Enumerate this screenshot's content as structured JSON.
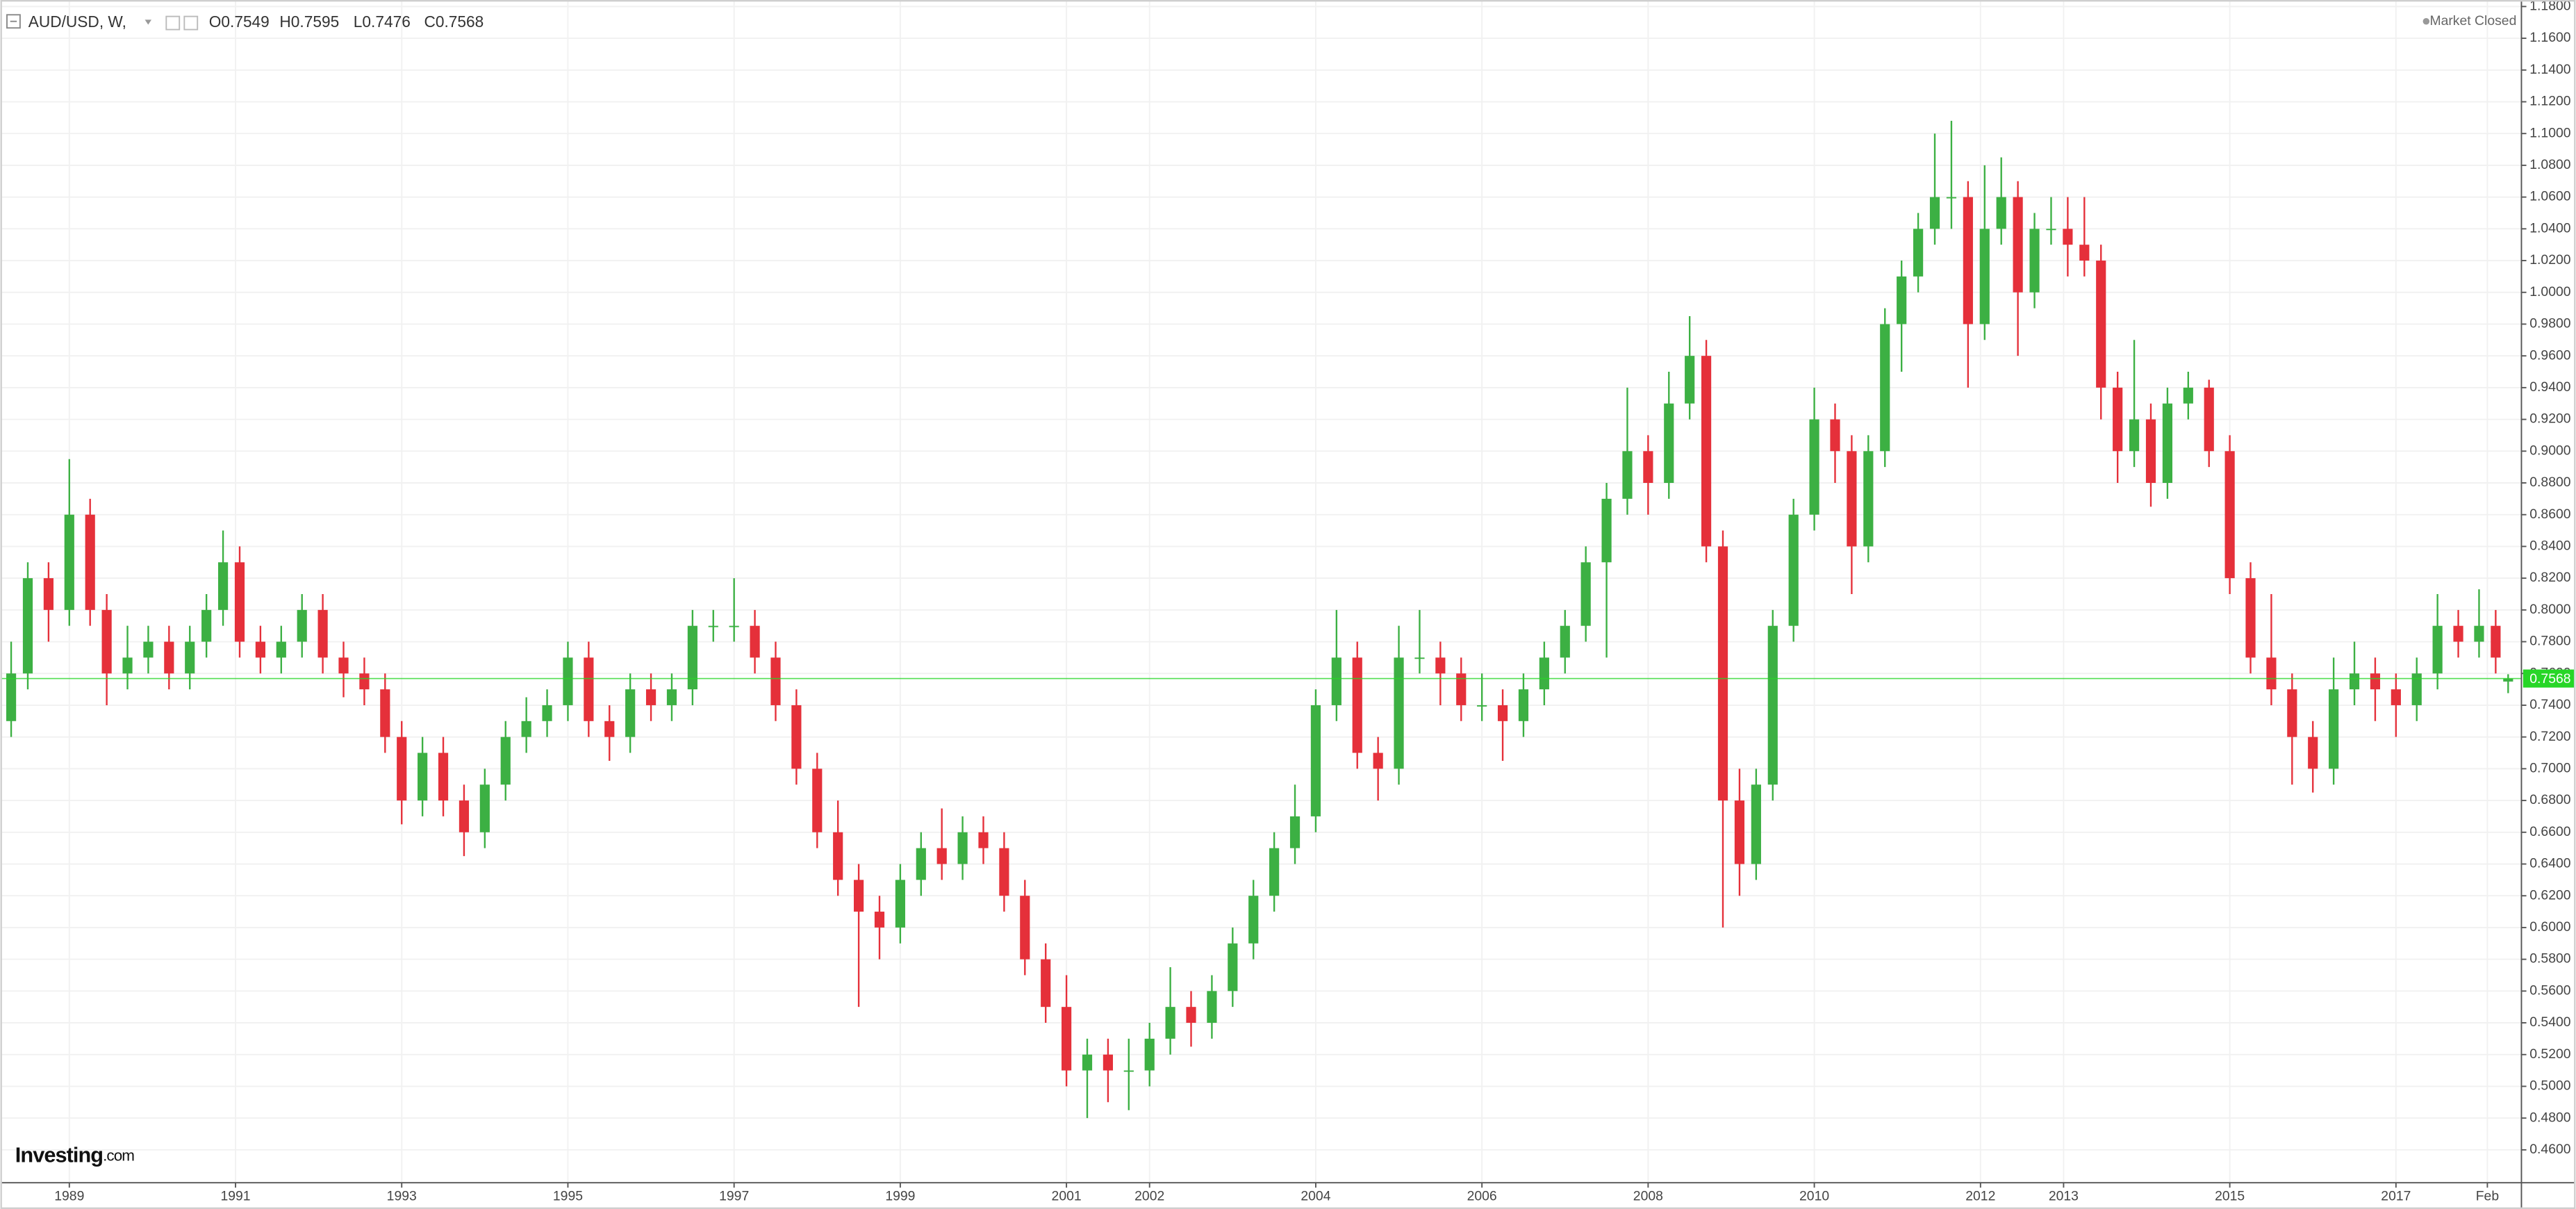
{
  "header": {
    "symbol": "AUD/USD, W,",
    "ohlc": [
      "O0.7549",
      "H0.7595",
      "L0.7476",
      "C0.7568"
    ],
    "status": "Market Closed",
    "logo_main": "Investing",
    "logo_suffix": ".com"
  },
  "chart_data": {
    "type": "candlestick",
    "x": [
      1988.3,
      1988.5,
      1988.75,
      1989.0,
      1989.25,
      1989.45,
      1989.7,
      1989.95,
      1990.2,
      1990.45,
      1990.65,
      1990.85,
      1991.05,
      1991.3,
      1991.55,
      1991.8,
      1992.05,
      1992.3,
      1992.55,
      1992.8,
      1993.0,
      1993.25,
      1993.5,
      1993.75,
      1994.0,
      1994.25,
      1994.5,
      1994.75,
      1995.0,
      1995.25,
      1995.5,
      1995.75,
      1996.0,
      1996.25,
      1996.5,
      1996.75,
      1997.0,
      1997.25,
      1997.5,
      1997.75,
      1998.0,
      1998.25,
      1998.5,
      1998.75,
      1999.0,
      1999.25,
      1999.5,
      1999.75,
      2000.0,
      2000.25,
      2000.5,
      2000.75,
      2001.0,
      2001.25,
      2001.5,
      2001.75,
      2002.0,
      2002.25,
      2002.5,
      2002.75,
      2003.0,
      2003.25,
      2003.5,
      2003.75,
      2004.0,
      2004.25,
      2004.5,
      2004.75,
      2005.0,
      2005.25,
      2005.5,
      2005.75,
      2006.0,
      2006.25,
      2006.5,
      2006.75,
      2007.0,
      2007.25,
      2007.5,
      2007.75,
      2008.0,
      2008.25,
      2008.5,
      2008.7,
      2008.9,
      2009.1,
      2009.3,
      2009.5,
      2009.75,
      2010.0,
      2010.25,
      2010.45,
      2010.65,
      2010.85,
      2011.05,
      2011.25,
      2011.45,
      2011.65,
      2011.85,
      2012.05,
      2012.25,
      2012.45,
      2012.65,
      2012.85,
      2013.05,
      2013.25,
      2013.45,
      2013.65,
      2013.85,
      2014.05,
      2014.25,
      2014.5,
      2014.75,
      2015.0,
      2015.25,
      2015.5,
      2015.75,
      2016.0,
      2016.25,
      2016.5,
      2016.75,
      2017.0,
      2017.25,
      2017.5,
      2017.75,
      2018.0,
      2018.2,
      2018.35
    ],
    "open": [
      0.73,
      0.76,
      0.82,
      0.8,
      0.86,
      0.8,
      0.76,
      0.77,
      0.78,
      0.76,
      0.78,
      0.8,
      0.83,
      0.78,
      0.77,
      0.78,
      0.8,
      0.77,
      0.76,
      0.75,
      0.72,
      0.68,
      0.71,
      0.68,
      0.66,
      0.69,
      0.72,
      0.73,
      0.74,
      0.77,
      0.73,
      0.72,
      0.75,
      0.74,
      0.75,
      0.79,
      0.79,
      0.79,
      0.77,
      0.74,
      0.7,
      0.66,
      0.63,
      0.61,
      0.6,
      0.63,
      0.65,
      0.64,
      0.66,
      0.65,
      0.62,
      0.58,
      0.55,
      0.51,
      0.52,
      0.51,
      0.51,
      0.53,
      0.55,
      0.54,
      0.56,
      0.59,
      0.62,
      0.65,
      0.67,
      0.74,
      0.77,
      0.71,
      0.7,
      0.77,
      0.77,
      0.76,
      0.74,
      0.74,
      0.73,
      0.75,
      0.77,
      0.79,
      0.83,
      0.87,
      0.9,
      0.88,
      0.93,
      0.96,
      0.84,
      0.68,
      0.64,
      0.69,
      0.79,
      0.86,
      0.92,
      0.9,
      0.84,
      0.9,
      0.98,
      1.01,
      1.04,
      1.06,
      1.06,
      0.98,
      1.04,
      1.06,
      1.0,
      1.04,
      1.04,
      1.03,
      1.02,
      0.94,
      0.9,
      0.92,
      0.88,
      0.93,
      0.94,
      0.9,
      0.82,
      0.77,
      0.75,
      0.72,
      0.7,
      0.75,
      0.76,
      0.75,
      0.74,
      0.76,
      0.79,
      0.78,
      0.79,
      0.7549
    ],
    "high": [
      0.78,
      0.83,
      0.83,
      0.895,
      0.87,
      0.81,
      0.79,
      0.79,
      0.79,
      0.79,
      0.81,
      0.85,
      0.84,
      0.79,
      0.79,
      0.81,
      0.81,
      0.78,
      0.77,
      0.76,
      0.73,
      0.72,
      0.72,
      0.69,
      0.7,
      0.73,
      0.745,
      0.75,
      0.78,
      0.78,
      0.74,
      0.76,
      0.76,
      0.76,
      0.8,
      0.8,
      0.82,
      0.8,
      0.78,
      0.75,
      0.71,
      0.68,
      0.64,
      0.62,
      0.64,
      0.66,
      0.675,
      0.67,
      0.67,
      0.66,
      0.63,
      0.59,
      0.57,
      0.53,
      0.53,
      0.53,
      0.54,
      0.575,
      0.56,
      0.57,
      0.6,
      0.63,
      0.66,
      0.69,
      0.75,
      0.8,
      0.78,
      0.72,
      0.79,
      0.8,
      0.78,
      0.77,
      0.76,
      0.75,
      0.76,
      0.78,
      0.8,
      0.84,
      0.88,
      0.94,
      0.91,
      0.95,
      0.985,
      0.97,
      0.85,
      0.7,
      0.7,
      0.8,
      0.87,
      0.94,
      0.93,
      0.91,
      0.91,
      0.99,
      1.02,
      1.05,
      1.1,
      1.108,
      1.07,
      1.08,
      1.085,
      1.07,
      1.05,
      1.06,
      1.06,
      1.06,
      1.03,
      0.95,
      0.97,
      0.93,
      0.94,
      0.95,
      0.945,
      0.91,
      0.83,
      0.81,
      0.76,
      0.73,
      0.77,
      0.78,
      0.77,
      0.76,
      0.77,
      0.81,
      0.8,
      0.813,
      0.8,
      0.7595
    ],
    "low": [
      0.72,
      0.75,
      0.78,
      0.79,
      0.79,
      0.74,
      0.75,
      0.76,
      0.75,
      0.75,
      0.77,
      0.79,
      0.77,
      0.76,
      0.76,
      0.77,
      0.76,
      0.745,
      0.74,
      0.71,
      0.665,
      0.67,
      0.67,
      0.645,
      0.65,
      0.68,
      0.71,
      0.72,
      0.73,
      0.72,
      0.705,
      0.71,
      0.73,
      0.73,
      0.74,
      0.78,
      0.78,
      0.76,
      0.73,
      0.69,
      0.65,
      0.62,
      0.55,
      0.58,
      0.59,
      0.62,
      0.63,
      0.63,
      0.64,
      0.61,
      0.57,
      0.54,
      0.5,
      0.48,
      0.49,
      0.485,
      0.5,
      0.52,
      0.525,
      0.53,
      0.55,
      0.58,
      0.61,
      0.64,
      0.66,
      0.73,
      0.7,
      0.68,
      0.69,
      0.76,
      0.74,
      0.73,
      0.73,
      0.705,
      0.72,
      0.74,
      0.76,
      0.78,
      0.77,
      0.86,
      0.86,
      0.87,
      0.92,
      0.83,
      0.6,
      0.62,
      0.63,
      0.68,
      0.78,
      0.85,
      0.88,
      0.81,
      0.83,
      0.89,
      0.95,
      1.0,
      1.03,
      1.04,
      0.94,
      0.97,
      1.03,
      0.96,
      0.99,
      1.03,
      1.01,
      1.01,
      0.92,
      0.88,
      0.89,
      0.865,
      0.87,
      0.92,
      0.89,
      0.81,
      0.76,
      0.74,
      0.69,
      0.685,
      0.69,
      0.74,
      0.73,
      0.72,
      0.73,
      0.75,
      0.77,
      0.77,
      0.76,
      0.7476
    ],
    "close": [
      0.76,
      0.82,
      0.8,
      0.86,
      0.8,
      0.76,
      0.77,
      0.78,
      0.76,
      0.78,
      0.8,
      0.83,
      0.78,
      0.77,
      0.78,
      0.8,
      0.77,
      0.76,
      0.75,
      0.72,
      0.68,
      0.71,
      0.68,
      0.66,
      0.69,
      0.72,
      0.73,
      0.74,
      0.77,
      0.73,
      0.72,
      0.75,
      0.74,
      0.75,
      0.79,
      0.79,
      0.79,
      0.77,
      0.74,
      0.7,
      0.66,
      0.63,
      0.61,
      0.6,
      0.63,
      0.65,
      0.64,
      0.66,
      0.65,
      0.62,
      0.58,
      0.55,
      0.51,
      0.52,
      0.51,
      0.51,
      0.53,
      0.55,
      0.54,
      0.56,
      0.59,
      0.62,
      0.65,
      0.67,
      0.74,
      0.77,
      0.71,
      0.7,
      0.77,
      0.77,
      0.76,
      0.74,
      0.74,
      0.73,
      0.75,
      0.77,
      0.79,
      0.83,
      0.87,
      0.9,
      0.88,
      0.93,
      0.96,
      0.84,
      0.68,
      0.64,
      0.69,
      0.79,
      0.86,
      0.92,
      0.9,
      0.84,
      0.9,
      0.98,
      1.01,
      1.04,
      1.06,
      1.06,
      0.98,
      1.04,
      1.06,
      1.0,
      1.04,
      1.04,
      1.03,
      1.02,
      0.94,
      0.9,
      0.92,
      0.88,
      0.93,
      0.94,
      0.9,
      0.82,
      0.77,
      0.75,
      0.72,
      0.7,
      0.75,
      0.76,
      0.75,
      0.74,
      0.76,
      0.79,
      0.78,
      0.79,
      0.77,
      0.7568
    ],
    "up_color": "#3cb043",
    "down_color": "#e5303a",
    "last_price": 0.7568,
    "last_price_color": "#27d627",
    "xlim": [
      1988.17,
      2018.51
    ],
    "ylim": [
      0.4393,
      1.1841
    ],
    "grid": true,
    "xticks": [
      1989,
      1991,
      1993,
      1995,
      1997,
      1999,
      2001,
      2002,
      2004,
      2006,
      2008,
      2010,
      2012,
      2013,
      2015,
      2017,
      {
        "value": 2018.1,
        "label": "Feb"
      }
    ],
    "yticks": [
      {
        "value": 0.46,
        "label": "0.4600"
      },
      {
        "value": 0.48,
        "label": "0.4800"
      },
      {
        "value": 0.5,
        "label": "0.5000"
      },
      {
        "value": 0.52,
        "label": "0.5200"
      },
      {
        "value": 0.54,
        "label": "0.5400"
      },
      {
        "value": 0.56,
        "label": "0.5600"
      },
      {
        "value": 0.58,
        "label": "0.5800"
      },
      {
        "value": 0.6,
        "label": "0.6000"
      },
      {
        "value": 0.62,
        "label": "0.6200"
      },
      {
        "value": 0.64,
        "label": "0.6400"
      },
      {
        "value": 0.66,
        "label": "0.6600"
      },
      {
        "value": 0.68,
        "label": "0.6800"
      },
      {
        "value": 0.7,
        "label": "0.7000"
      },
      {
        "value": 0.72,
        "label": "0.7200"
      },
      {
        "value": 0.74,
        "label": "0.7400"
      },
      {
        "value": 0.76,
        "label": "0.7600"
      },
      {
        "value": 0.78,
        "label": "0.7800"
      },
      {
        "value": 0.8,
        "label": "0.8000"
      },
      {
        "value": 0.82,
        "label": "0.8200"
      },
      {
        "value": 0.84,
        "label": "0.8400"
      },
      {
        "value": 0.86,
        "label": "0.8600"
      },
      {
        "value": 0.88,
        "label": "0.8800"
      },
      {
        "value": 0.9,
        "label": "0.9000"
      },
      {
        "value": 0.92,
        "label": "0.9200"
      },
      {
        "value": 0.94,
        "label": "0.9400"
      },
      {
        "value": 0.96,
        "label": "0.9600"
      },
      {
        "value": 0.98,
        "label": "0.9800"
      },
      {
        "value": 1.0,
        "label": "1.0000"
      },
      {
        "value": 1.02,
        "label": "1.0200"
      },
      {
        "value": 1.04,
        "label": "1.0400"
      },
      {
        "value": 1.06,
        "label": "1.0600"
      },
      {
        "value": 1.08,
        "label": "1.0800"
      },
      {
        "value": 1.1,
        "label": "1.1000"
      },
      {
        "value": 1.12,
        "label": "1.1200"
      },
      {
        "value": 1.14,
        "label": "1.1400"
      },
      {
        "value": 1.16,
        "label": "1.1600"
      },
      {
        "value": 1.18,
        "label": "1.1800"
      }
    ]
  }
}
